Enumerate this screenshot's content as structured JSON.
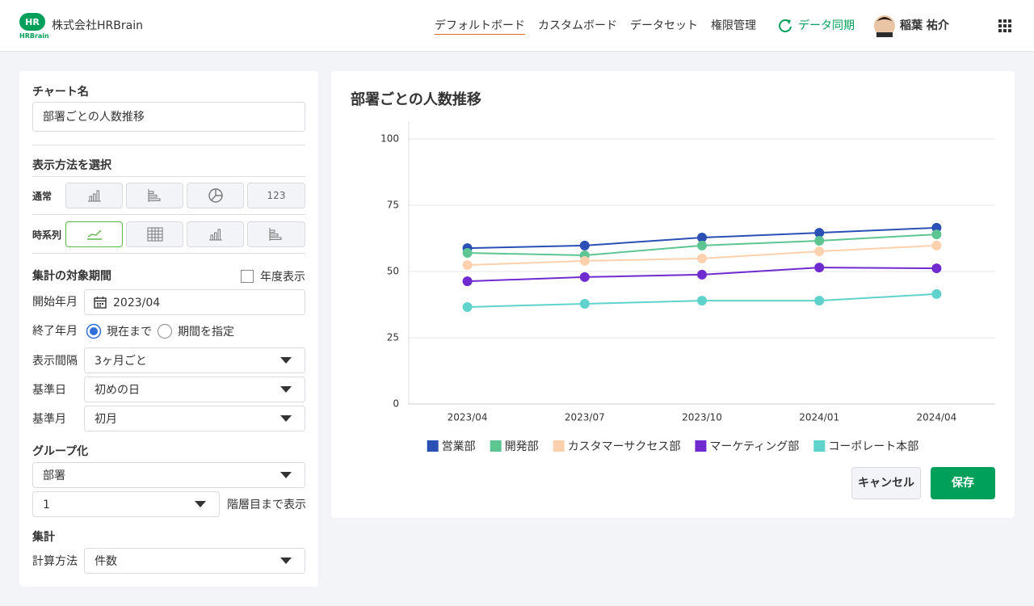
{
  "header": {
    "logo": "HR",
    "logo_sub": "HRBrain",
    "company": "株式会社HRBrain",
    "nav": [
      "デフォルトボード",
      "カスタムボード",
      "データセット",
      "権限管理"
    ],
    "sync": "データ同期",
    "user": "稲葉 祐介"
  },
  "form": {
    "chart_name_label": "チャート名",
    "chart_name_value": "部署ごとの人数推移",
    "display_label": "表示方法を選択",
    "normal_label": "通常",
    "number_button": "123",
    "timeseries_label": "時系列",
    "period_label": "集計の対象期間",
    "fiscal_year_label": "年度表示",
    "start_label": "開始年月",
    "start_value": "2023/04",
    "end_label": "終了年月",
    "end_option_current": "現在まで",
    "end_option_range": "期間を指定",
    "interval_label": "表示間隔",
    "interval_value": "3ヶ月ごと",
    "base_day_label": "基準日",
    "base_day_value": "初めの日",
    "base_month_label": "基準月",
    "base_month_value": "初月",
    "group_label": "グループ化",
    "group_value": "部署",
    "level_value": "1",
    "level_suffix": "階層目まで表示",
    "aggregate_label": "集計",
    "calc_label": "計算方法",
    "calc_value": "件数"
  },
  "buttons": {
    "cancel": "キャンセル",
    "save": "保存"
  },
  "chart_data": {
    "type": "line",
    "title": "部署ごとの人数推移",
    "categories": [
      "2023/04",
      "2023/07",
      "2023/10",
      "2024/01",
      "2024/04"
    ],
    "series": [
      {
        "name": "営業部",
        "color": "#2a4fb5",
        "values": [
          58.8,
          59.8,
          62.8,
          64.6,
          66.5
        ]
      },
      {
        "name": "開発部",
        "color": "#5cc592",
        "values": [
          57.0,
          56.1,
          59.8,
          61.6,
          64.0
        ]
      },
      {
        "name": "カスタマーサクセス部",
        "color": "#fdd0ae",
        "values": [
          52.4,
          54.0,
          54.9,
          57.6,
          59.8
        ]
      },
      {
        "name": "マーケティング部",
        "color": "#6f2bd0",
        "values": [
          46.3,
          47.9,
          48.8,
          51.5,
          51.2
        ]
      },
      {
        "name": "コーポレート本部",
        "color": "#5fd3cb",
        "values": [
          36.6,
          37.8,
          39.0,
          39.0,
          41.5
        ]
      }
    ],
    "ylim": [
      0,
      100
    ],
    "yticks": [
      0,
      25,
      50,
      75,
      100
    ],
    "grid": true,
    "legend": "bottom"
  }
}
